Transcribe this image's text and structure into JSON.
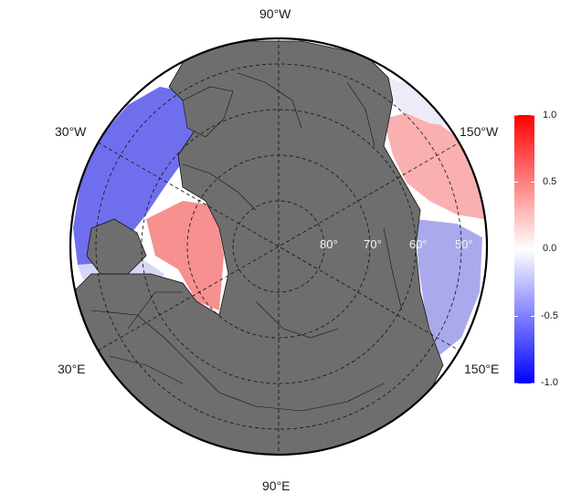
{
  "map": {
    "projection": "north-polar-stereographic",
    "land_color": "#6e6e6e",
    "ocean_color": "#ffffff",
    "graticule_style": "dashed",
    "longitude_labels": {
      "top": "90°W",
      "upper_left": "30°W",
      "upper_right": "150°W",
      "lower_left": "30°E",
      "lower_right": "150°E",
      "bottom": "90°E"
    },
    "latitude_labels": [
      "80°",
      "70°",
      "60°",
      "50°"
    ]
  },
  "colorbar": {
    "colormap": "blue-white-red",
    "low_color": "#0000ff",
    "mid_color": "#ffffff",
    "high_color": "#ff0000",
    "range": [
      -1.0,
      1.0
    ],
    "ticks": [
      "1.0",
      "0.5",
      "0.0",
      "-0.5",
      "-1.0"
    ]
  },
  "field_regions": [
    {
      "region": "North Atlantic / Labrador Sea",
      "sign": "negative",
      "value": -0.55
    },
    {
      "region": "Barents-Kara Seas",
      "sign": "positive",
      "value": 0.4
    },
    {
      "region": "Gulf of Alaska / Bering Sea",
      "sign": "positive",
      "value": 0.35
    },
    {
      "region": "Western North Pacific",
      "sign": "negative",
      "value": -0.3
    }
  ]
}
